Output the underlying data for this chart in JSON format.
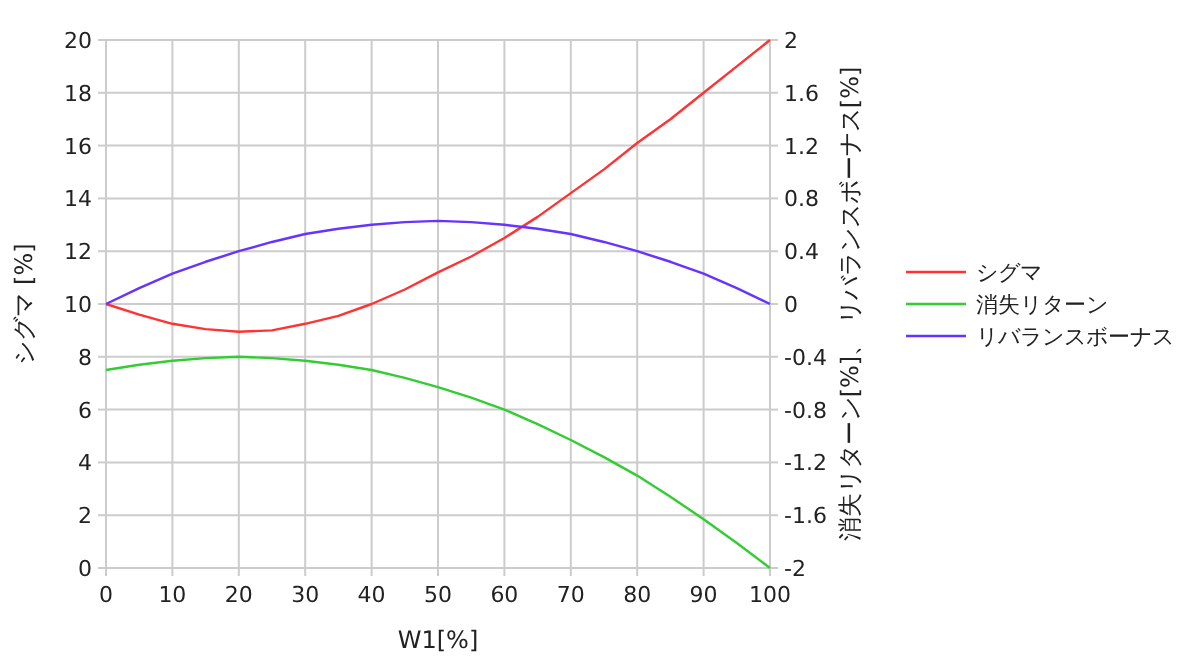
{
  "chart_data": {
    "type": "line",
    "xlabel": "W1[%]",
    "ylabel": "シグマ [%]",
    "y2label": "消失リターン[%]、 リバランスボーナス[%]",
    "x": [
      0,
      5,
      10,
      15,
      20,
      25,
      30,
      35,
      40,
      45,
      50,
      55,
      60,
      65,
      70,
      75,
      80,
      85,
      90,
      95,
      100
    ],
    "series": [
      {
        "name": "シグマ",
        "color": "#ff3333",
        "values": [
          10,
          9.6,
          9.25,
          9.05,
          8.95,
          9.0,
          9.25,
          9.55,
          10,
          10.55,
          11.2,
          11.8,
          12.5,
          13.3,
          14.2,
          15.1,
          16.1,
          17,
          18,
          19,
          20
        ]
      },
      {
        "name": "消失リターン",
        "color": "#33cc33",
        "axis": "y2",
        "values": [
          -0.5,
          -0.46,
          -0.43,
          -0.41,
          -0.4,
          -0.41,
          -0.43,
          -0.46,
          -0.5,
          -0.56,
          -0.63,
          -0.71,
          -0.8,
          -0.91,
          -1.03,
          -1.16,
          -1.3,
          -1.46,
          -1.63,
          -1.81,
          -2
        ]
      },
      {
        "name": "リバランスボーナス",
        "color": "#6633ff",
        "axis": "y2",
        "values": [
          0,
          0.12,
          0.23,
          0.32,
          0.4,
          0.47,
          0.53,
          0.57,
          0.6,
          0.62,
          0.63,
          0.62,
          0.6,
          0.57,
          0.53,
          0.47,
          0.4,
          0.32,
          0.23,
          0.12,
          0
        ]
      }
    ],
    "xlim": [
      0,
      100
    ],
    "xticks": [
      0,
      10,
      20,
      30,
      40,
      50,
      60,
      70,
      80,
      90,
      100
    ],
    "ylim": [
      0,
      20
    ],
    "yticks": [
      0,
      2,
      4,
      6,
      8,
      10,
      12,
      14,
      16,
      18,
      20
    ],
    "y2lim": [
      -2,
      2
    ],
    "y2ticks": [
      -2,
      -1.6,
      -1.2,
      -0.8,
      -0.4,
      0,
      0.4,
      0.8,
      1.2,
      1.6,
      2
    ],
    "grid": true,
    "legend": "right"
  }
}
